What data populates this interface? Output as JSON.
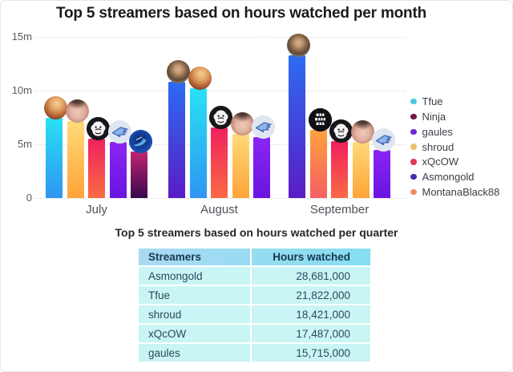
{
  "chart_data": [
    {
      "type": "bar",
      "title": "Top 5 streamers based on hours watched per month",
      "subtitle": "",
      "categories": [
        "July",
        "August",
        "September"
      ],
      "value_unit": "millions of hours watched",
      "ylim": [
        0,
        15000000
      ],
      "y_ticks": [
        {
          "label": "15m",
          "value": 15
        },
        {
          "label": "10m",
          "value": 10
        },
        {
          "label": "5m",
          "value": 5
        },
        {
          "label": "0",
          "value": 0
        }
      ],
      "grid": "dashed horizontal",
      "legend_position": "right",
      "series": [
        {
          "name": "Tfue",
          "values": [
            7.45,
            10.2,
            null
          ],
          "legend_color": "#4cc9db",
          "bar_color_top": "#29e1f4",
          "bar_color_bottom": "#2f95f2",
          "avatar": "tfue-face-avatar"
        },
        {
          "name": "Ninja",
          "values": [
            4.3,
            null,
            null
          ],
          "legend_color": "#701747",
          "bar_color_top": "#c22473",
          "bar_color_bottom": "#37094d",
          "avatar": "eagle-logo-avatar"
        },
        {
          "name": "gaules",
          "values": [
            5.25,
            5.7,
            4.5
          ],
          "legend_color": "#6e2bd5",
          "bar_color_top": "#8a25f3",
          "bar_color_bottom": "#6a14e0",
          "avatar": "winged-logo-avatar"
        },
        {
          "name": "shroud",
          "values": [
            7.2,
            6.0,
            5.2
          ],
          "legend_color": "#eec26d",
          "bar_color_top": "#ffda78",
          "bar_color_bottom": "#ffa438",
          "avatar": "shroud-face-avatar"
        },
        {
          "name": "xQcOW",
          "values": [
            5.5,
            6.6,
            5.3
          ],
          "legend_color": "#dd3a53",
          "bar_color_top": "#f0205e",
          "bar_color_bottom": "#fa6a44",
          "avatar": "gorilla-logo-avatar"
        },
        {
          "name": "Asmongold",
          "values": [
            null,
            10.8,
            13.3
          ],
          "legend_color": "#3b2fae",
          "bar_color_top": "#2b6cf2",
          "bar_color_bottom": "#5a1cc6",
          "avatar": "asmongold-face-avatar"
        },
        {
          "name": "MontanaBlack88",
          "values": [
            null,
            null,
            6.35
          ],
          "legend_color": "#ee8a72",
          "bar_color_top": "#ffa03e",
          "bar_color_bottom": "#f65f62",
          "avatar": "getright-logo-avatar"
        }
      ],
      "bar_order_by_month": [
        [
          "Tfue",
          "shroud",
          "xQcOW",
          "gaules",
          "Ninja"
        ],
        [
          "Asmongold",
          "Tfue",
          "xQcOW",
          "shroud",
          "gaules"
        ],
        [
          "Asmongold",
          "MontanaBlack88",
          "xQcOW",
          "shroud",
          "gaules"
        ]
      ]
    },
    {
      "type": "table",
      "title": "Top 5 streamers based on hours watched per quarter",
      "columns": [
        "Streamers",
        "Hours watched"
      ],
      "rows": [
        [
          "Asmongold",
          "28,681,000"
        ],
        [
          "Tfue",
          "21,822,000"
        ],
        [
          "shroud",
          "18,421,000"
        ],
        [
          "xQcOW",
          "17,487,000"
        ],
        [
          "gaules",
          "15,715,000"
        ]
      ]
    }
  ]
}
